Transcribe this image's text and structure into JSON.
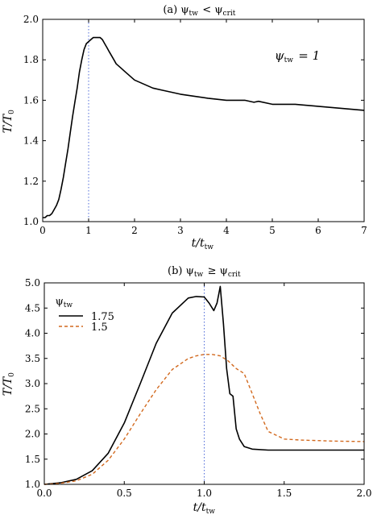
{
  "chart_data": [
    {
      "type": "line",
      "title": "(a) ψtw < ψcrit",
      "xlabel": "t/ttw",
      "ylabel": "T/T0",
      "xlim": [
        0,
        7
      ],
      "ylim": [
        1.0,
        2.0
      ],
      "xticks": [
        "0",
        "1",
        "2",
        "3",
        "4",
        "5",
        "6",
        "7"
      ],
      "yticks": [
        "1.0",
        "1.2",
        "1.4",
        "1.6",
        "1.8",
        "2.0"
      ],
      "annotation": "ψtw = 1",
      "vline": 1.0,
      "grid": false,
      "series": [
        {
          "color": "#000000",
          "dash": "solid",
          "x": [
            0,
            0.05,
            0.1,
            0.15,
            0.2,
            0.25,
            0.3,
            0.35,
            0.4,
            0.45,
            0.5,
            0.55,
            0.6,
            0.65,
            0.7,
            0.75,
            0.8,
            0.85,
            0.9,
            0.95,
            1.0,
            1.05,
            1.1,
            1.15,
            1.2,
            1.25,
            1.3,
            1.35,
            1.4,
            1.45,
            1.5,
            1.55,
            1.6,
            1.7,
            1.8,
            1.9,
            2.0,
            2.1,
            2.2,
            2.4,
            2.6,
            2.8,
            3.0,
            3.3,
            3.6,
            4.0,
            4.4,
            4.6,
            4.7,
            5.0,
            5.5,
            6.0,
            6.5,
            7.0
          ],
          "y": [
            1.02,
            1.02,
            1.03,
            1.03,
            1.04,
            1.06,
            1.08,
            1.11,
            1.16,
            1.22,
            1.29,
            1.36,
            1.44,
            1.52,
            1.59,
            1.66,
            1.74,
            1.8,
            1.85,
            1.88,
            1.89,
            1.9,
            1.91,
            1.91,
            1.91,
            1.91,
            1.9,
            1.88,
            1.86,
            1.84,
            1.82,
            1.8,
            1.78,
            1.76,
            1.74,
            1.72,
            1.7,
            1.69,
            1.68,
            1.66,
            1.65,
            1.64,
            1.63,
            1.62,
            1.61,
            1.6,
            1.6,
            1.59,
            1.595,
            1.58,
            1.58,
            1.57,
            1.56,
            1.55
          ]
        }
      ]
    },
    {
      "type": "line",
      "title": "(b) ψtw ≥ ψcrit",
      "xlabel": "t/ttw",
      "ylabel": "T/T0",
      "xlim": [
        0,
        2.0
      ],
      "ylim": [
        1.0,
        5.0
      ],
      "xticks": [
        "0.0",
        "0.5",
        "1.0",
        "1.5",
        "2.0"
      ],
      "yticks": [
        "1.0",
        "1.5",
        "2.0",
        "2.5",
        "3.0",
        "3.5",
        "4.0",
        "4.5",
        "5.0"
      ],
      "legend_title": "ψtw",
      "legend_position": "top-left",
      "vline": 1.0,
      "grid": false,
      "series": [
        {
          "name": "1.75",
          "color": "#000000",
          "dash": "solid",
          "x": [
            0,
            0.1,
            0.2,
            0.3,
            0.4,
            0.5,
            0.6,
            0.7,
            0.8,
            0.9,
            0.95,
            1.0,
            1.03,
            1.06,
            1.08,
            1.1,
            1.12,
            1.14,
            1.16,
            1.18,
            1.2,
            1.22,
            1.25,
            1.3,
            1.4,
            1.6,
            1.8,
            2.0
          ],
          "y": [
            1.0,
            1.03,
            1.1,
            1.27,
            1.62,
            2.22,
            3.0,
            3.8,
            4.4,
            4.7,
            4.73,
            4.72,
            4.6,
            4.45,
            4.6,
            4.93,
            4.2,
            3.3,
            2.8,
            2.75,
            2.1,
            1.9,
            1.75,
            1.7,
            1.68,
            1.68,
            1.68,
            1.68
          ]
        },
        {
          "name": "1.5",
          "color": "#d2691e",
          "dash": "dashed",
          "x": [
            0,
            0.1,
            0.2,
            0.3,
            0.4,
            0.5,
            0.6,
            0.7,
            0.8,
            0.9,
            0.95,
            1.0,
            1.05,
            1.1,
            1.15,
            1.2,
            1.25,
            1.3,
            1.35,
            1.4,
            1.5,
            1.6,
            1.8,
            2.0
          ],
          "y": [
            1.0,
            1.02,
            1.07,
            1.2,
            1.48,
            1.9,
            2.4,
            2.88,
            3.28,
            3.5,
            3.55,
            3.58,
            3.58,
            3.55,
            3.45,
            3.3,
            3.2,
            2.8,
            2.4,
            2.05,
            1.9,
            1.88,
            1.86,
            1.85
          ]
        }
      ]
    }
  ]
}
